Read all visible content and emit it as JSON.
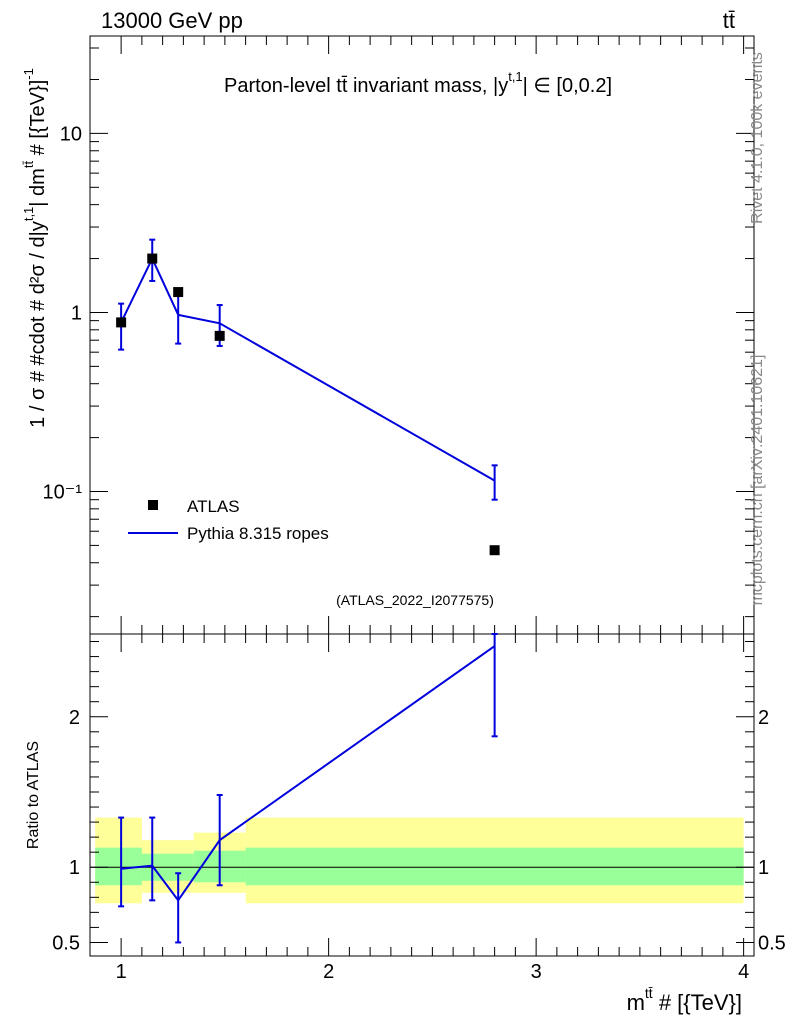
{
  "chart_data": [
    {
      "type": "scatter",
      "panel": "main",
      "title": "Parton-level t̅t invariant mass, |y^{t,1}| ∈ [0,0.2]",
      "title_plain": "Parton-level tt̄ invariant mass, |y",
      "title_sup": "t,1",
      "title_tail": "| ∈ [0,0.2]",
      "header_left": "13000 GeV pp",
      "header_right": "tt̄",
      "ylabel": "1 / σ # #cdot # d²σ / d|y^{t,1}| dm^{t̅t} # [{TeV}]^{-1}",
      "ylabel_plain": "1 / σ # #cdot # d²σ / d|y",
      "ylabel_sup1": "t,1",
      "ylabel_mid": "| dm",
      "ylabel_sup2": "tt̄",
      "ylabel_tail": " # [{TeV}]",
      "ylabel_sup3": "-1",
      "yscale": "log",
      "ylim": [
        0.016,
        35
      ],
      "xlim": [
        0.85,
        4.05
      ],
      "y_tick_labels": [
        "10",
        "1",
        "10⁻¹"
      ],
      "y_tick_values": [
        10,
        1,
        0.1
      ],
      "legend": [
        {
          "name": "ATLAS",
          "marker": "square"
        },
        {
          "name": "Pythia 8.315 ropes",
          "marker": "line"
        }
      ],
      "legend_position": "lower-left",
      "watermark": "(ATLAS_2022_I2077575)",
      "series": [
        {
          "name": "ATLAS",
          "x": [
            1.0,
            1.15,
            1.275,
            1.475,
            2.8
          ],
          "y": [
            0.88,
            2.0,
            1.3,
            0.74,
            0.047
          ]
        },
        {
          "name": "Pythia 8.315 ropes",
          "x": [
            1.0,
            1.15,
            1.275,
            1.475,
            2.8
          ],
          "y": [
            0.88,
            2.0,
            0.97,
            0.87,
            0.115
          ],
          "err_low": [
            0.62,
            1.5,
            0.67,
            0.65,
            0.09
          ],
          "err_high": [
            1.12,
            2.55,
            1.25,
            1.1,
            0.14
          ]
        }
      ]
    },
    {
      "type": "line",
      "panel": "ratio",
      "ylabel": "Ratio to ATLAS",
      "xlabel": "m^{t̅t} # [{TeV}]",
      "xlabel_plain": "m",
      "xlabel_sup": "tt̄",
      "xlabel_tail": " # [{TeV}]",
      "ylim": [
        0.41,
        2.55
      ],
      "y_tick_labels": [
        "0.5",
        "1",
        "2"
      ],
      "y_tick_values": [
        0.5,
        1,
        2
      ],
      "x_tick_labels": [
        "1",
        "2",
        "3",
        "4"
      ],
      "x_tick_values": [
        1,
        2,
        3,
        4
      ],
      "bands": [
        {
          "x0": 0.875,
          "x1": 1.1,
          "inner": [
            0.88,
            1.13
          ],
          "outer": [
            0.76,
            1.33
          ]
        },
        {
          "x0": 1.1,
          "x1": 1.35,
          "inner": [
            0.91,
            1.09
          ],
          "outer": [
            0.83,
            1.18
          ]
        },
        {
          "x0": 1.35,
          "x1": 1.6,
          "inner": [
            0.9,
            1.11
          ],
          "outer": [
            0.83,
            1.23
          ]
        },
        {
          "x0": 1.6,
          "x1": 4.0,
          "inner": [
            0.88,
            1.13
          ],
          "outer": [
            0.76,
            1.33
          ]
        }
      ],
      "series": [
        {
          "name": "Pythia 8.315 ropes / ATLAS",
          "x": [
            1.0,
            1.15,
            1.275,
            1.475,
            2.8
          ],
          "y": [
            0.99,
            1.01,
            0.78,
            1.18,
            2.47
          ],
          "err_low": [
            0.74,
            0.78,
            0.5,
            0.88,
            1.87
          ],
          "err_high": [
            1.33,
            1.33,
            0.96,
            1.48,
            2.6
          ]
        }
      ]
    }
  ],
  "side_text": {
    "rivet": "Rivet 4.1.0,  100k events",
    "mcplots": "mcplots.cern.ch [arXiv:2401.10621]"
  },
  "colors": {
    "mc": "#0000dd",
    "data": "#000000",
    "band_inner": "#99ff99",
    "band_outer": "#ffff99",
    "watermark": "#999999"
  }
}
